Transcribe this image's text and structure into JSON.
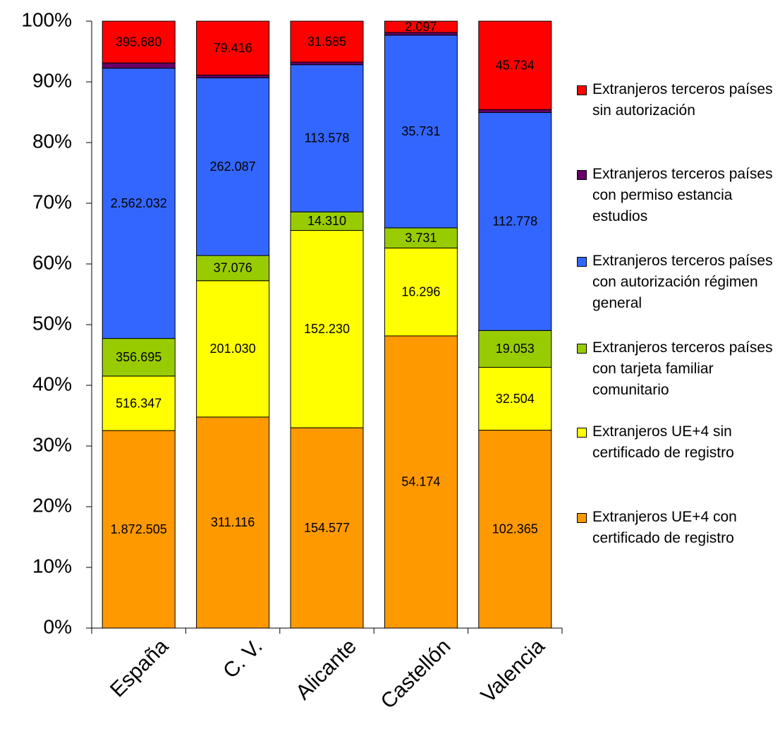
{
  "chart_data": {
    "type": "bar",
    "stacking": "percent",
    "categories": [
      "España",
      "C. V.",
      "Alicante",
      "Castellón",
      "Valencia"
    ],
    "series": [
      {
        "name": "Extranjeros UE+4 con certificado de registro",
        "color": "#FF9900",
        "values": [
          1872505,
          311116,
          154577,
          54174,
          102365
        ],
        "value_labels": [
          "1.872.505",
          "311.116",
          "154.577",
          "54.174",
          "102.365"
        ]
      },
      {
        "name": "Extranjeros UE+4 sin certificado de registro",
        "color": "#FFFF00",
        "values": [
          516347,
          201030,
          152230,
          16296,
          32504
        ],
        "value_labels": [
          "516.347",
          "201.030",
          "152.230",
          "16.296",
          "32.504"
        ]
      },
      {
        "name": "Extranjeros terceros países con tarjeta familiar comunitario",
        "color": "#99CC00",
        "values": [
          356695,
          37076,
          14310,
          3731,
          19053
        ],
        "value_labels": [
          "356.695",
          "37.076",
          "14.310",
          "3.731",
          "19.053"
        ]
      },
      {
        "name": "Extranjeros terceros países con autorización régimen general",
        "color": "#3366FF",
        "values": [
          2562032,
          262087,
          113578,
          35731,
          112778
        ],
        "value_labels": [
          "2.562.032",
          "262.087",
          "113.578",
          "35.731",
          "112.778"
        ]
      },
      {
        "name": "Extranjeros terceros países con permiso estancia estudios",
        "color": "#660066",
        "values": [
          50000,
          4000,
          2000,
          500,
          1500
        ]
      },
      {
        "name": "Extranjeros terceros países sin autorización",
        "color": "#FF0000",
        "values": [
          395680,
          79416,
          31585,
          2097,
          45734
        ],
        "value_labels": [
          "395.680",
          "79.416",
          "31.585",
          "2.097",
          "45.734"
        ]
      }
    ],
    "ylim": [
      0,
      100
    ],
    "yticks": [
      {
        "value": 0,
        "label": "0%"
      },
      {
        "value": 10,
        "label": "10%"
      },
      {
        "value": 20,
        "label": "20%"
      },
      {
        "value": 30,
        "label": "30%"
      },
      {
        "value": 40,
        "label": "40%"
      },
      {
        "value": 50,
        "label": "50%"
      },
      {
        "value": 60,
        "label": "60%"
      },
      {
        "value": 70,
        "label": "70%"
      },
      {
        "value": 80,
        "label": "80%"
      },
      {
        "value": 90,
        "label": "90%"
      },
      {
        "value": 100,
        "label": "100%"
      }
    ],
    "legend": "right"
  }
}
